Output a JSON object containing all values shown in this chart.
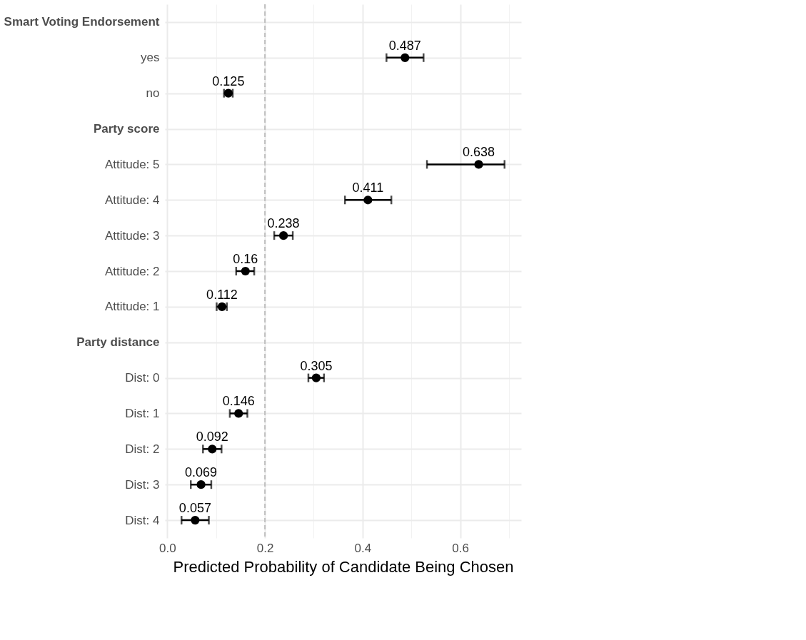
{
  "chart_data": {
    "type": "scatter",
    "xlabel": "Predicted Probability of Candidate Being Chosen",
    "categories": [
      "Smart Voting Endorsement",
      "yes",
      "no",
      "Party score",
      "Attitude: 5",
      "Attitude: 4",
      "Attitude: 3",
      "Attitude: 2",
      "Attitude: 1",
      "Party distance",
      "Dist: 0",
      "Dist: 1",
      "Dist: 2",
      "Dist: 3",
      "Dist: 4"
    ],
    "series": [
      {
        "color": "#000000",
        "values": [
          null,
          0.487,
          0.125,
          null,
          0.638,
          0.411,
          0.238,
          0.16,
          0.112,
          null,
          0.305,
          0.146,
          0.092,
          0.069,
          0.057
        ],
        "errors": [
          null,
          [
            0.449,
            0.525
          ],
          [
            0.116,
            0.134
          ],
          null,
          [
            0.532,
            0.691
          ],
          [
            0.364,
            0.459
          ],
          [
            0.219,
            0.257
          ],
          [
            0.141,
            0.178
          ],
          [
            0.101,
            0.122
          ],
          null,
          [
            0.289,
            0.321
          ],
          [
            0.128,
            0.164
          ],
          [
            0.073,
            0.111
          ],
          [
            0.048,
            0.09
          ],
          [
            0.029,
            0.085
          ]
        ]
      }
    ],
    "data_labels": true,
    "marker": "circle",
    "xlim": [
      -0.005,
      0.725
    ],
    "xticks": [
      {
        "value": 0,
        "label": "0.0"
      },
      {
        "value": 0.1,
        "label": null
      },
      {
        "value": 0.2,
        "label": "0.2"
      },
      {
        "value": 0.3,
        "label": null
      },
      {
        "value": 0.4,
        "label": "0.4"
      },
      {
        "value": 0.5,
        "label": null
      },
      {
        "value": 0.6,
        "label": "0.6"
      },
      {
        "value": 0.7,
        "label": null
      }
    ],
    "ref_lines": [
      {
        "axis": "x",
        "value": 0.2,
        "color": "#bebebe",
        "line_style": "dashed"
      }
    ],
    "grid": true,
    "orientation": "horizontal"
  }
}
